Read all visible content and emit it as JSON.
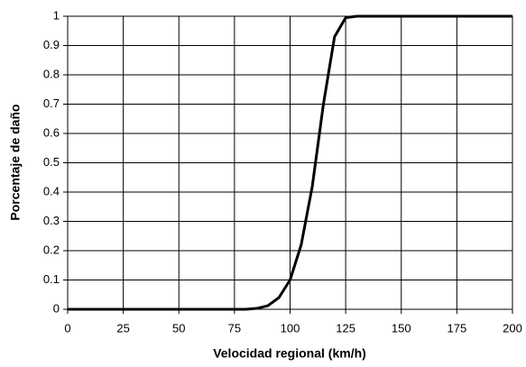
{
  "chart_data": {
    "type": "line",
    "x_label": "Velocidad regional (km/h)",
    "y_label": "Porcentaje de daño",
    "x": [
      0,
      75,
      80,
      85,
      90,
      95,
      100,
      105,
      110,
      115,
      120,
      125,
      130,
      200
    ],
    "series": [
      {
        "name": "Porcentaje de daño",
        "color": "#000000",
        "values": [
          0,
          0,
          0,
          0.003,
          0.012,
          0.04,
          0.1,
          0.22,
          0.42,
          0.7,
          0.93,
          0.995,
          1,
          1
        ]
      }
    ],
    "xlim": [
      0,
      200
    ],
    "xticks": [
      0,
      25,
      50,
      75,
      100,
      125,
      150,
      175,
      200
    ],
    "ylim": [
      0,
      1
    ],
    "yticks": [
      0,
      0.1,
      0.2,
      0.3,
      0.4,
      0.5,
      0.6,
      0.7,
      0.8,
      0.9,
      1
    ],
    "grid": true
  }
}
